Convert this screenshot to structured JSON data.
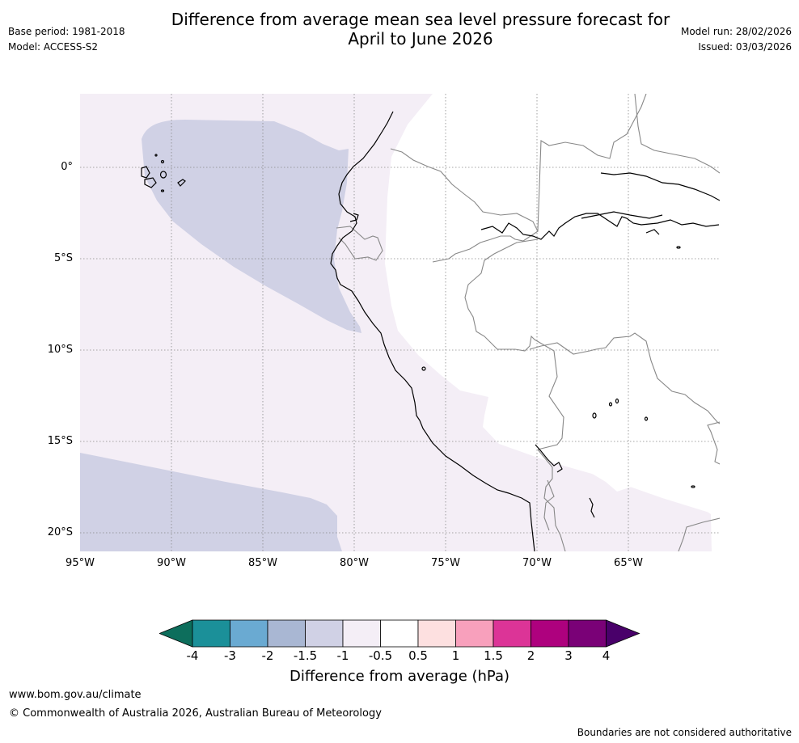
{
  "header": {
    "title_line1": "Difference from average mean sea level pressure forecast for",
    "title_line2": "April to June 2026",
    "base_period": "Base period: 1981-2018",
    "model": "Model: ACCESS-S2",
    "model_run": "Model run: 28/02/2026",
    "issued": "Issued: 03/03/2026"
  },
  "map": {
    "lat_labels": [
      "0°",
      "5°S",
      "10°S",
      "15°S",
      "20°S"
    ],
    "lon_labels": [
      "95°W",
      "90°W",
      "85°W",
      "80°W",
      "75°W",
      "70°W",
      "65°W"
    ],
    "lon_range": [
      -95,
      -60
    ],
    "lat_range": [
      -21,
      4
    ]
  },
  "colorbar": {
    "label": "Difference from average (hPa)",
    "ticks": [
      "-4",
      "-3",
      "-2",
      "-1.5",
      "-1",
      "-0.5",
      "0.5",
      "1",
      "1.5",
      "2",
      "3",
      "4"
    ],
    "colors": [
      "#0d6e5c",
      "#1b9099",
      "#6aaad2",
      "#a9b7d3",
      "#d0d1e5",
      "#f4eef6",
      "#ffffff",
      "#fde0e0",
      "#f8a0bc",
      "#dc3497",
      "#ae017e",
      "#7a0177",
      "#49006a"
    ]
  },
  "footer": {
    "website": "www.bom.gov.au/climate",
    "copyright": "© Commonwealth of Australia 2026, Australian Bureau of Meteorology",
    "disclaimer": "Boundaries are not considered authoritative"
  }
}
